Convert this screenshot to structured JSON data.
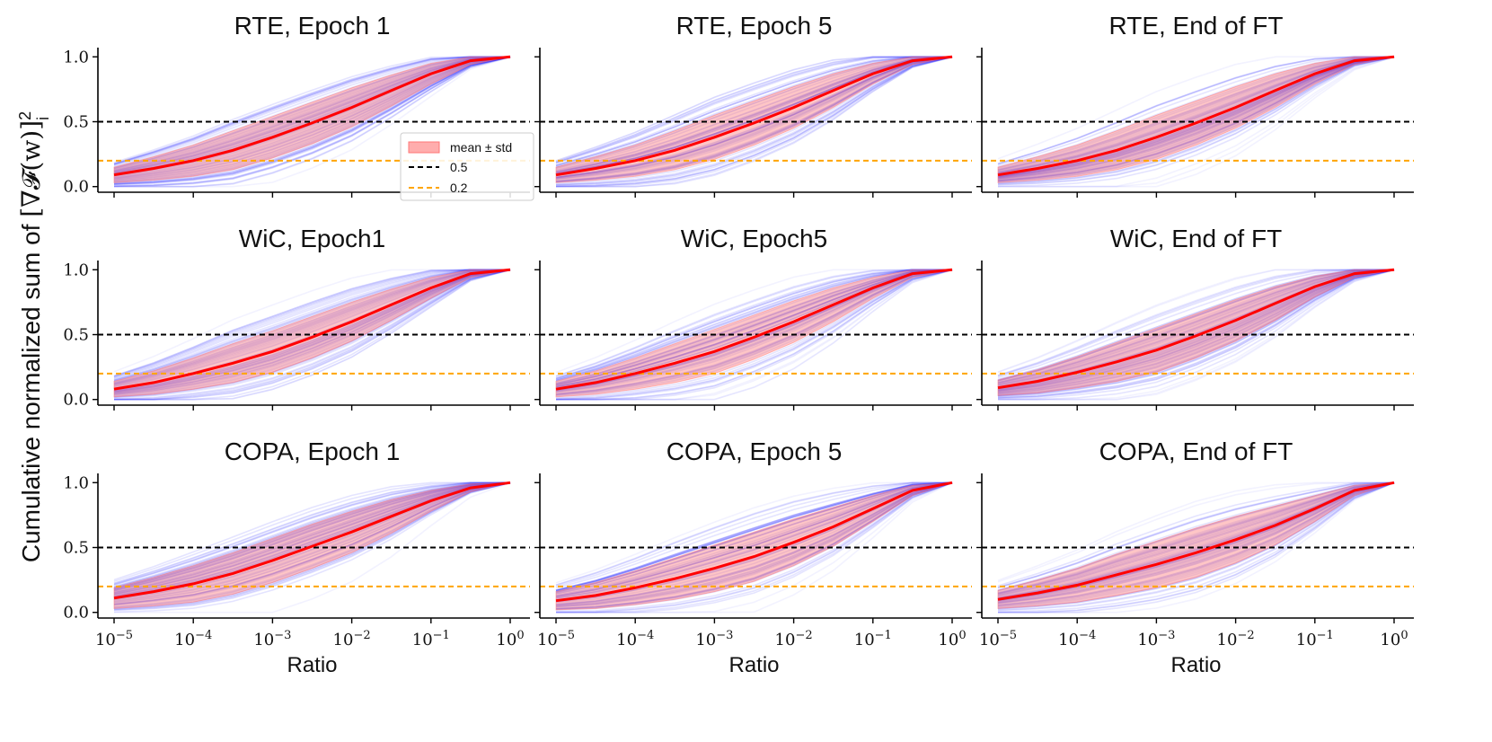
{
  "figure": {
    "ylabel_text": "Cumulative normalized sum of ",
    "ylabel_math": "[∇𝓕(w)]",
    "ylabel_sup": "2",
    "ylabel_sub": "i"
  },
  "chart_data": [
    {
      "type": "line",
      "title": "RTE, Epoch 1",
      "xlabel": "",
      "xscale": "log",
      "xlim": [
        1e-05,
        1
      ],
      "ylim": [
        0,
        1
      ],
      "x": [
        1e-05,
        3.16e-05,
        0.0001,
        0.000316,
        0.001,
        0.00316,
        0.01,
        0.0316,
        0.1,
        0.316,
        1
      ],
      "series": [
        {
          "name": "mean",
          "values": [
            0.09,
            0.14,
            0.2,
            0.28,
            0.38,
            0.49,
            0.61,
            0.74,
            0.87,
            0.97,
            1.0
          ]
        },
        {
          "name": "std",
          "values": [
            0.06,
            0.09,
            0.12,
            0.15,
            0.16,
            0.16,
            0.15,
            0.12,
            0.08,
            0.03,
            0.0
          ]
        }
      ],
      "hlines": [
        0.5,
        0.2
      ],
      "legend": {
        "placement": "center-right",
        "entries": [
          "mean ± std",
          "0.5",
          "0.2"
        ]
      },
      "yticks": [
        "0.0",
        "0.5",
        "1.0"
      ]
    },
    {
      "type": "line",
      "title": "RTE, Epoch 5",
      "xlabel": "",
      "xscale": "log",
      "xlim": [
        1e-05,
        1
      ],
      "ylim": [
        0,
        1
      ],
      "x": [
        1e-05,
        3.16e-05,
        0.0001,
        0.000316,
        0.001,
        0.00316,
        0.01,
        0.0316,
        0.1,
        0.316,
        1
      ],
      "series": [
        {
          "name": "mean",
          "values": [
            0.09,
            0.14,
            0.2,
            0.28,
            0.38,
            0.49,
            0.61,
            0.74,
            0.87,
            0.97,
            1.0
          ]
        },
        {
          "name": "std",
          "values": [
            0.06,
            0.09,
            0.12,
            0.15,
            0.17,
            0.17,
            0.16,
            0.13,
            0.08,
            0.03,
            0.0
          ]
        }
      ],
      "hlines": [
        0.5,
        0.2
      ],
      "yticks": []
    },
    {
      "type": "line",
      "title": "RTE, End of FT",
      "xlabel": "",
      "xscale": "log",
      "xlim": [
        1e-05,
        1
      ],
      "ylim": [
        0,
        1
      ],
      "x": [
        1e-05,
        3.16e-05,
        0.0001,
        0.000316,
        0.001,
        0.00316,
        0.01,
        0.0316,
        0.1,
        0.316,
        1
      ],
      "series": [
        {
          "name": "mean",
          "values": [
            0.09,
            0.14,
            0.2,
            0.28,
            0.38,
            0.49,
            0.61,
            0.74,
            0.87,
            0.97,
            1.0
          ]
        },
        {
          "name": "std",
          "values": [
            0.06,
            0.09,
            0.12,
            0.15,
            0.17,
            0.17,
            0.16,
            0.13,
            0.08,
            0.03,
            0.0
          ]
        }
      ],
      "hlines": [
        0.5,
        0.2
      ],
      "yticks": []
    },
    {
      "type": "line",
      "title": "WiC, Epoch1",
      "xlabel": "",
      "xscale": "log",
      "xlim": [
        1e-05,
        1
      ],
      "ylim": [
        0,
        1
      ],
      "x": [
        1e-05,
        3.16e-05,
        0.0001,
        0.000316,
        0.001,
        0.00316,
        0.01,
        0.0316,
        0.1,
        0.316,
        1
      ],
      "series": [
        {
          "name": "mean",
          "values": [
            0.08,
            0.13,
            0.2,
            0.28,
            0.37,
            0.48,
            0.6,
            0.73,
            0.86,
            0.97,
            1.0
          ]
        },
        {
          "name": "std",
          "values": [
            0.06,
            0.09,
            0.12,
            0.15,
            0.16,
            0.16,
            0.15,
            0.12,
            0.08,
            0.03,
            0.0
          ]
        }
      ],
      "hlines": [
        0.5,
        0.2
      ],
      "yticks": [
        "0.0",
        "0.5",
        "1.0"
      ]
    },
    {
      "type": "line",
      "title": "WiC, Epoch5",
      "xlabel": "",
      "xscale": "log",
      "xlim": [
        1e-05,
        1
      ],
      "ylim": [
        0,
        1
      ],
      "x": [
        1e-05,
        3.16e-05,
        0.0001,
        0.000316,
        0.001,
        0.00316,
        0.01,
        0.0316,
        0.1,
        0.316,
        1
      ],
      "series": [
        {
          "name": "mean",
          "values": [
            0.08,
            0.13,
            0.2,
            0.28,
            0.37,
            0.48,
            0.6,
            0.73,
            0.86,
            0.97,
            1.0
          ]
        },
        {
          "name": "std",
          "values": [
            0.06,
            0.09,
            0.12,
            0.15,
            0.17,
            0.17,
            0.16,
            0.13,
            0.08,
            0.03,
            0.0
          ]
        }
      ],
      "hlines": [
        0.5,
        0.2
      ],
      "yticks": []
    },
    {
      "type": "line",
      "title": "WiC, End of FT",
      "xlabel": "",
      "xscale": "log",
      "xlim": [
        1e-05,
        1
      ],
      "ylim": [
        0,
        1
      ],
      "x": [
        1e-05,
        3.16e-05,
        0.0001,
        0.000316,
        0.001,
        0.00316,
        0.01,
        0.0316,
        0.1,
        0.316,
        1
      ],
      "series": [
        {
          "name": "mean",
          "values": [
            0.09,
            0.14,
            0.21,
            0.29,
            0.38,
            0.49,
            0.61,
            0.74,
            0.87,
            0.97,
            1.0
          ]
        },
        {
          "name": "std",
          "values": [
            0.06,
            0.09,
            0.12,
            0.15,
            0.17,
            0.17,
            0.16,
            0.13,
            0.08,
            0.03,
            0.0
          ]
        }
      ],
      "hlines": [
        0.5,
        0.2
      ],
      "yticks": []
    },
    {
      "type": "line",
      "title": "COPA, Epoch 1",
      "xlabel": "Ratio",
      "xscale": "log",
      "xlim": [
        1e-05,
        1
      ],
      "ylim": [
        0,
        1
      ],
      "x": [
        1e-05,
        3.16e-05,
        0.0001,
        0.000316,
        0.001,
        0.00316,
        0.01,
        0.0316,
        0.1,
        0.316,
        1
      ],
      "series": [
        {
          "name": "mean",
          "values": [
            0.11,
            0.16,
            0.22,
            0.3,
            0.4,
            0.51,
            0.62,
            0.74,
            0.86,
            0.96,
            1.0
          ]
        },
        {
          "name": "std",
          "values": [
            0.08,
            0.11,
            0.14,
            0.16,
            0.17,
            0.17,
            0.16,
            0.13,
            0.08,
            0.03,
            0.0
          ]
        }
      ],
      "hlines": [
        0.5,
        0.2
      ],
      "yticks": [
        "0.0",
        "0.5",
        "1.0"
      ],
      "xticks": [
        "10^-5",
        "10^-4",
        "10^-3",
        "10^-2",
        "10^-1",
        "10^0"
      ]
    },
    {
      "type": "line",
      "title": "COPA, Epoch 5",
      "xlabel": "Ratio",
      "xscale": "log",
      "xlim": [
        1e-05,
        1
      ],
      "ylim": [
        0,
        1
      ],
      "x": [
        1e-05,
        3.16e-05,
        0.0001,
        0.000316,
        0.001,
        0.00316,
        0.01,
        0.0316,
        0.1,
        0.316,
        1
      ],
      "series": [
        {
          "name": "mean",
          "values": [
            0.09,
            0.13,
            0.19,
            0.26,
            0.34,
            0.43,
            0.54,
            0.66,
            0.8,
            0.94,
            1.0
          ]
        },
        {
          "name": "std",
          "values": [
            0.07,
            0.1,
            0.13,
            0.16,
            0.18,
            0.19,
            0.18,
            0.15,
            0.1,
            0.04,
            0.0
          ]
        }
      ],
      "hlines": [
        0.5,
        0.2
      ],
      "yticks": [],
      "xticks": [
        "10^-5",
        "10^-4",
        "10^-3",
        "10^-2",
        "10^-1",
        "10^0"
      ]
    },
    {
      "type": "line",
      "title": "COPA, End of FT",
      "xlabel": "Ratio",
      "xscale": "log",
      "xlim": [
        1e-05,
        1
      ],
      "ylim": [
        0,
        1
      ],
      "x": [
        1e-05,
        3.16e-05,
        0.0001,
        0.000316,
        0.001,
        0.00316,
        0.01,
        0.0316,
        0.1,
        0.316,
        1
      ],
      "series": [
        {
          "name": "mean",
          "values": [
            0.1,
            0.15,
            0.21,
            0.29,
            0.37,
            0.46,
            0.56,
            0.67,
            0.8,
            0.94,
            1.0
          ]
        },
        {
          "name": "std",
          "values": [
            0.07,
            0.1,
            0.13,
            0.16,
            0.18,
            0.19,
            0.18,
            0.15,
            0.1,
            0.04,
            0.0
          ]
        }
      ],
      "hlines": [
        0.5,
        0.2
      ],
      "yticks": [],
      "xticks": [
        "10^-5",
        "10^-4",
        "10^-3",
        "10^-2",
        "10^-1",
        "10^0"
      ]
    }
  ],
  "colors": {
    "mean_line": "#ff0000",
    "band_fill": "#ff7777",
    "trace_line": "#2020ff",
    "hline_05": "#000000",
    "hline_02": "#ffa500"
  }
}
